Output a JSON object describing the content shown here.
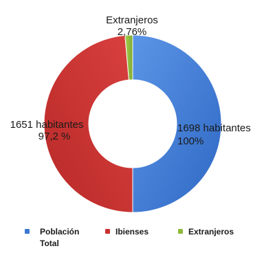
{
  "chart_data": {
    "type": "donut",
    "series": [
      {
        "name": "Población Total",
        "value": 1698,
        "label_line1": "1698 habitantes",
        "label_line2": "100%",
        "color": "#3b78d1"
      },
      {
        "name": "Ibienses",
        "value": 1651,
        "label_line1": "1651 habitantes",
        "label_line2": "97,2 %",
        "color": "#c9302f"
      },
      {
        "name": "Extranjeros",
        "value": 47,
        "label_line1": "Extranjeros",
        "label_line2": "2,76%",
        "color": "#8dba3a"
      }
    ],
    "legend": {
      "placement": "bottom",
      "entries": [
        "Población",
        "Total",
        "Ibienses",
        "Extranjeros"
      ]
    },
    "title": "",
    "xlabel": "",
    "ylabel": ""
  }
}
